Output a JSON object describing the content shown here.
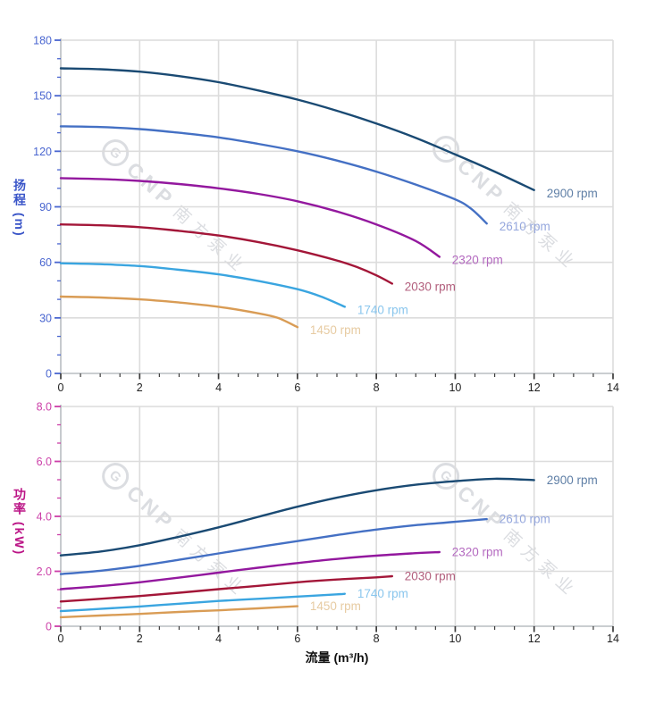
{
  "watermark": {
    "logo_letter": "G",
    "brand": "CNP",
    "brand_cn": "南方泵业"
  },
  "colors": {
    "grid": "#dcdcdc",
    "axis_line": "#b9bdc2",
    "x_tick": "#3c3c3c",
    "x_tick_label": "#1f1f1f",
    "head_axis": "#4a66d0",
    "head_axis_title": "#3a55c8",
    "power_axis": "#cc3fa8",
    "power_axis_title": "#bb1486"
  },
  "chart_data": [
    {
      "type": "line",
      "title": "",
      "xlabel": "流量 (m³/h)",
      "ylabel": "扬程 (m)",
      "xlim": [
        0,
        14
      ],
      "ylim": [
        0,
        180
      ],
      "x_major": 2,
      "x_minor_div": 4,
      "y_major": 30,
      "y_minor_div": 3,
      "grid": true,
      "legend_position": "end-of-line",
      "x_tick_labels": [
        "0",
        "2",
        "4",
        "6",
        "8",
        "10",
        "12",
        "14"
      ],
      "y_tick_labels": [
        "0",
        "30",
        "60",
        "90",
        "120",
        "150",
        "180"
      ],
      "axis_color": "#4a66d0",
      "series": [
        {
          "name": "2900 rpm",
          "color": "#1a4a73",
          "label_color": "#5f7fa6",
          "points": [
            [
              0,
              164.8
            ],
            [
              1,
              164.3
            ],
            [
              2,
              163
            ],
            [
              3,
              160.6
            ],
            [
              4,
              157.3
            ],
            [
              5,
              152.9
            ],
            [
              6,
              147.9
            ],
            [
              7,
              141.9
            ],
            [
              8,
              135
            ],
            [
              9,
              127.2
            ],
            [
              10,
              118.3
            ],
            [
              11,
              109
            ],
            [
              12,
              99
            ]
          ]
        },
        {
          "name": "2610 rpm",
          "color": "#4470c4",
          "label_color": "#95a7dd",
          "points": [
            [
              0,
              133.5
            ],
            [
              1,
              133.1
            ],
            [
              2,
              132
            ],
            [
              3,
              130
            ],
            [
              4,
              127.5
            ],
            [
              5,
              124
            ],
            [
              6,
              120
            ],
            [
              7,
              115
            ],
            [
              8,
              109
            ],
            [
              9,
              102
            ],
            [
              10,
              94
            ],
            [
              10.4,
              89
            ],
            [
              10.8,
              81
            ]
          ]
        },
        {
          "name": "2320 rpm",
          "color": "#93189e",
          "label_color": "#b46ac0",
          "points": [
            [
              0,
              105.5
            ],
            [
              1,
              105
            ],
            [
              2,
              104
            ],
            [
              3,
              102.3
            ],
            [
              4,
              100
            ],
            [
              5,
              97
            ],
            [
              6,
              93
            ],
            [
              7,
              87.5
            ],
            [
              8,
              80.5
            ],
            [
              9,
              71.5
            ],
            [
              9.6,
              63
            ]
          ]
        },
        {
          "name": "2030 rpm",
          "color": "#a31638",
          "label_color": "#b25e7c",
          "points": [
            [
              0,
              80.5
            ],
            [
              1,
              80
            ],
            [
              2,
              79
            ],
            [
              3,
              77
            ],
            [
              4,
              74.5
            ],
            [
              5,
              71
            ],
            [
              6,
              66.5
            ],
            [
              7,
              61
            ],
            [
              7.5,
              57.5
            ],
            [
              8,
              53
            ],
            [
              8.4,
              48.5
            ]
          ]
        },
        {
          "name": "1740 rpm",
          "color": "#3aa5e0",
          "label_color": "#8ac6ed",
          "points": [
            [
              0,
              59.5
            ],
            [
              1,
              59
            ],
            [
              2,
              58
            ],
            [
              3,
              56
            ],
            [
              4,
              53.5
            ],
            [
              5,
              50
            ],
            [
              6,
              45.5
            ],
            [
              6.6,
              41.5
            ],
            [
              7.2,
              36
            ]
          ]
        },
        {
          "name": "1450 rpm",
          "color": "#d99c55",
          "label_color": "#e7cba2",
          "points": [
            [
              0,
              41.5
            ],
            [
              1,
              41
            ],
            [
              2,
              40
            ],
            [
              3,
              38.3
            ],
            [
              4,
              36
            ],
            [
              5,
              32.5
            ],
            [
              5.5,
              30
            ],
            [
              6,
              25
            ]
          ]
        }
      ]
    },
    {
      "type": "line",
      "title": "",
      "xlabel": "流量 (m³/h)",
      "ylabel": "功率 (kW)",
      "xlim": [
        0,
        14
      ],
      "ylim": [
        0,
        8
      ],
      "x_major": 2,
      "x_minor_div": 4,
      "y_major": 2,
      "y_minor_div": 3,
      "grid": true,
      "legend_position": "end-of-line",
      "x_tick_labels": [
        "0",
        "2",
        "4",
        "6",
        "8",
        "10",
        "12",
        "14"
      ],
      "y_tick_labels": [
        "0",
        "2.0",
        "4.0",
        "6.0",
        "8.0"
      ],
      "axis_color": "#cc3fa8",
      "series": [
        {
          "name": "2900 rpm",
          "color": "#1a4a73",
          "label_color": "#5f7fa6",
          "points": [
            [
              0,
              2.58
            ],
            [
              1,
              2.72
            ],
            [
              2,
              2.95
            ],
            [
              3,
              3.26
            ],
            [
              4,
              3.6
            ],
            [
              5,
              3.98
            ],
            [
              6,
              4.35
            ],
            [
              7,
              4.68
            ],
            [
              8,
              4.95
            ],
            [
              9,
              5.15
            ],
            [
              10,
              5.28
            ],
            [
              11,
              5.37
            ],
            [
              12,
              5.32
            ]
          ]
        },
        {
          "name": "2610 rpm",
          "color": "#4470c4",
          "label_color": "#95a7dd",
          "points": [
            [
              0,
              1.9
            ],
            [
              1,
              2.02
            ],
            [
              2,
              2.2
            ],
            [
              3,
              2.42
            ],
            [
              4,
              2.65
            ],
            [
              5,
              2.88
            ],
            [
              6,
              3.1
            ],
            [
              7,
              3.32
            ],
            [
              8,
              3.52
            ],
            [
              9,
              3.68
            ],
            [
              10,
              3.8
            ],
            [
              10.8,
              3.9
            ]
          ]
        },
        {
          "name": "2320 rpm",
          "color": "#93189e",
          "label_color": "#b46ac0",
          "points": [
            [
              0,
              1.35
            ],
            [
              1,
              1.46
            ],
            [
              2,
              1.6
            ],
            [
              3,
              1.77
            ],
            [
              4,
              1.95
            ],
            [
              5,
              2.13
            ],
            [
              6,
              2.3
            ],
            [
              7,
              2.45
            ],
            [
              8,
              2.57
            ],
            [
              9,
              2.66
            ],
            [
              9.6,
              2.7
            ]
          ]
        },
        {
          "name": "2030 rpm",
          "color": "#a31638",
          "label_color": "#b25e7c",
          "points": [
            [
              0,
              0.9
            ],
            [
              1,
              1.0
            ],
            [
              2,
              1.1
            ],
            [
              3,
              1.22
            ],
            [
              4,
              1.35
            ],
            [
              5,
              1.47
            ],
            [
              6,
              1.6
            ],
            [
              7,
              1.7
            ],
            [
              8,
              1.78
            ],
            [
              8.4,
              1.82
            ]
          ]
        },
        {
          "name": "1740 rpm",
          "color": "#3aa5e0",
          "label_color": "#8ac6ed",
          "points": [
            [
              0,
              0.55
            ],
            [
              1,
              0.63
            ],
            [
              2,
              0.72
            ],
            [
              3,
              0.82
            ],
            [
              4,
              0.92
            ],
            [
              5,
              1.0
            ],
            [
              6,
              1.08
            ],
            [
              7,
              1.16
            ],
            [
              7.2,
              1.18
            ]
          ]
        },
        {
          "name": "1450 rpm",
          "color": "#d99c55",
          "label_color": "#e7cba2",
          "points": [
            [
              0,
              0.33
            ],
            [
              1,
              0.39
            ],
            [
              2,
              0.45
            ],
            [
              3,
              0.52
            ],
            [
              4,
              0.58
            ],
            [
              5,
              0.65
            ],
            [
              6,
              0.73
            ]
          ]
        }
      ]
    }
  ]
}
